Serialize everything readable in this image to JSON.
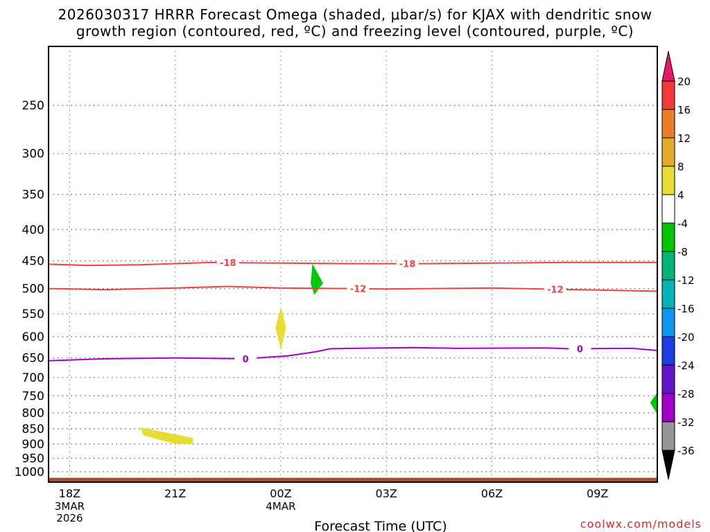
{
  "title_line1": "2026030317 HRRR Forecast Omega (shaded, μbar/s) for KJAX with dendritic snow",
  "title_line2": "growth region (contoured, red, ºC) and freezing level (contoured, purple, ºC)",
  "credit": "coolwx.com/models",
  "chart_data": {
    "type": "time-height cross section",
    "xlabel": "Forecast Time (UTC)",
    "ylabel": "",
    "x_ticks": [
      {
        "hour": 0,
        "label": "18Z",
        "sub": [
          "3MAR",
          "2026"
        ]
      },
      {
        "hour": 3,
        "label": "21Z",
        "sub": []
      },
      {
        "hour": 6,
        "label": "00Z",
        "sub": [
          "4MAR"
        ]
      },
      {
        "hour": 9,
        "label": "03Z",
        "sub": []
      },
      {
        "hour": 12,
        "label": "06Z",
        "sub": []
      },
      {
        "hour": 15,
        "label": "09Z",
        "sub": []
      }
    ],
    "xlim": [
      -0.6,
      16.7
    ],
    "y_scale": "log",
    "ylim": [
      1040,
      200
    ],
    "y_ticks": [
      250,
      300,
      350,
      400,
      450,
      500,
      550,
      600,
      650,
      700,
      750,
      800,
      850,
      900,
      950,
      1000
    ],
    "grid": true,
    "isotherms": [
      {
        "label": "-18",
        "color": "#f04040",
        "points": [
          [
            -0.6,
            456
          ],
          [
            0.5,
            458
          ],
          [
            2,
            457
          ],
          [
            4,
            453
          ],
          [
            6,
            454
          ],
          [
            8,
            455
          ],
          [
            10,
            455
          ],
          [
            12,
            454
          ],
          [
            14,
            453
          ],
          [
            16.7,
            453
          ]
        ],
        "label_hours": [
          4.5,
          9.6
        ]
      },
      {
        "label": "-12",
        "color": "#f04040",
        "points": [
          [
            -0.6,
            500
          ],
          [
            1,
            502
          ],
          [
            3,
            499
          ],
          [
            4.5,
            496
          ],
          [
            6,
            499
          ],
          [
            8,
            500
          ],
          [
            9,
            501
          ],
          [
            12,
            499
          ],
          [
            13.5,
            501
          ],
          [
            16.7,
            505
          ]
        ],
        "label_hours": [
          8.2,
          13.8
        ]
      },
      {
        "label": "0",
        "color": "#a000c8",
        "points": [
          [
            -0.6,
            657
          ],
          [
            1,
            652
          ],
          [
            3,
            650
          ],
          [
            5,
            652
          ],
          [
            6.2,
            645
          ],
          [
            7,
            635
          ],
          [
            7.4,
            628
          ],
          [
            8,
            627
          ],
          [
            9.8,
            625
          ],
          [
            11,
            627
          ],
          [
            13.5,
            626
          ],
          [
            14.2,
            628
          ],
          [
            16,
            627
          ],
          [
            16.7,
            632
          ]
        ],
        "label_hours": [
          5.0,
          14.5
        ]
      }
    ],
    "shaded_regions": [
      {
        "category": "-8 to -4",
        "color": "#00c800",
        "points": [
          [
            6.9,
            455
          ],
          [
            7.2,
            490
          ],
          [
            6.95,
            512
          ],
          [
            6.85,
            490
          ]
        ]
      },
      {
        "category": "4 to 8",
        "color": "#e6dc32",
        "points": [
          [
            6.0,
            535
          ],
          [
            6.15,
            580
          ],
          [
            6.0,
            630
          ],
          [
            5.85,
            580
          ]
        ]
      },
      {
        "category": "4 to 8",
        "color": "#e6dc32",
        "points": [
          [
            2.0,
            845
          ],
          [
            3.5,
            880
          ],
          [
            3.5,
            900
          ],
          [
            3.0,
            900
          ],
          [
            2.1,
            872
          ]
        ]
      },
      {
        "category": "-8 to -4",
        "color": "#00c800",
        "points": [
          [
            16.7,
            740
          ],
          [
            16.7,
            805
          ],
          [
            16.5,
            770
          ]
        ]
      }
    ],
    "terrain_band": {
      "color": "#a0522d",
      "top_hpa": 1023
    },
    "colorbar": {
      "labels": [
        "20",
        "16",
        "12",
        "8",
        "4",
        "-4",
        "-8",
        "-12",
        "-16",
        "-20",
        "-24",
        "-28",
        "-32",
        "-36"
      ],
      "colors": [
        "#e6186e",
        "#f23a3a",
        "#ec7d28",
        "#e6aa28",
        "#e6dc32",
        "#ffffff",
        "#00c800",
        "#00b478",
        "#00b4b4",
        "#0a96f0",
        "#1e3ce6",
        "#6414c8",
        "#a000c8",
        "#969696",
        "#000000"
      ]
    }
  }
}
